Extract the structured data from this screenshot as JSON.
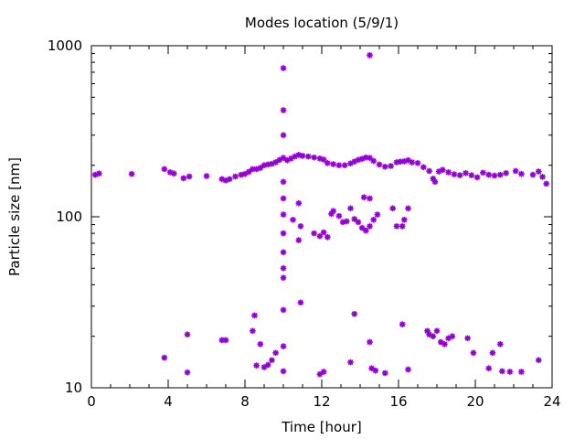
{
  "chart_data": {
    "type": "scatter",
    "title": "Modes location (5/9/1)",
    "xlabel": "Time [hour]",
    "ylabel": "Particle size [nm]",
    "xlim": [
      0,
      24
    ],
    "ylim": [
      10,
      1000
    ],
    "yscale": "log",
    "x_ticks": [
      0,
      4,
      8,
      12,
      16,
      20,
      24
    ],
    "x_tick_labels": [
      "0",
      "4",
      "8",
      "12",
      "16",
      "20",
      "24"
    ],
    "y_ticks": [
      10,
      100,
      1000
    ],
    "y_tick_labels": [
      "10",
      "100",
      "1000"
    ],
    "grid": false,
    "legend": "none",
    "marker_color": "#9400D3",
    "marker": "star",
    "series": [
      {
        "points": [
          [
            0.2,
            176
          ],
          [
            0.4,
            179
          ],
          [
            2.1,
            178
          ],
          [
            3.8,
            190
          ],
          [
            4.1,
            182
          ],
          [
            4.3,
            179
          ],
          [
            4.8,
            168
          ],
          [
            5.1,
            172
          ],
          [
            6.0,
            173
          ],
          [
            6.8,
            166
          ],
          [
            7.0,
            163
          ],
          [
            7.2,
            166
          ],
          [
            7.5,
            172
          ],
          [
            7.8,
            176
          ],
          [
            8.0,
            178
          ],
          [
            8.2,
            183
          ],
          [
            8.4,
            190
          ],
          [
            8.6,
            190
          ],
          [
            8.8,
            193
          ],
          [
            9.0,
            200
          ],
          [
            9.2,
            202
          ],
          [
            9.4,
            204
          ],
          [
            9.6,
            208
          ],
          [
            9.8,
            215
          ],
          [
            10.0,
            221
          ],
          [
            10.2,
            214
          ],
          [
            10.4,
            219
          ],
          [
            10.6,
            225
          ],
          [
            10.8,
            230
          ],
          [
            11.0,
            227
          ],
          [
            11.3,
            225
          ],
          [
            11.6,
            222
          ],
          [
            11.9,
            219
          ],
          [
            12.1,
            216
          ],
          [
            12.3,
            206
          ],
          [
            12.6,
            203
          ],
          [
            12.9,
            200
          ],
          [
            13.2,
            200
          ],
          [
            13.5,
            205
          ],
          [
            13.7,
            210
          ],
          [
            13.9,
            215
          ],
          [
            14.1,
            218
          ],
          [
            14.3,
            222
          ],
          [
            14.5,
            221
          ],
          [
            14.7,
            212
          ],
          [
            15.0,
            202
          ],
          [
            15.3,
            196
          ],
          [
            15.6,
            198
          ],
          [
            15.9,
            208
          ],
          [
            16.1,
            210
          ],
          [
            16.3,
            211
          ],
          [
            16.5,
            214
          ],
          [
            16.7,
            208
          ],
          [
            17.0,
            206
          ],
          [
            17.3,
            195
          ],
          [
            17.6,
            185
          ],
          [
            17.8,
            167
          ],
          [
            17.9,
            160
          ],
          [
            18.1,
            184
          ],
          [
            18.3,
            188
          ],
          [
            18.6,
            182
          ],
          [
            18.9,
            177
          ],
          [
            19.2,
            175
          ],
          [
            19.5,
            180
          ],
          [
            19.8,
            175
          ],
          [
            20.1,
            170
          ],
          [
            20.4,
            181
          ],
          [
            20.7,
            176
          ],
          [
            21.0,
            174
          ],
          [
            21.3,
            176
          ],
          [
            21.6,
            180
          ],
          [
            22.1,
            185
          ],
          [
            22.4,
            178
          ],
          [
            23.0,
            176
          ],
          [
            23.3,
            184
          ],
          [
            23.5,
            171
          ],
          [
            23.7,
            156
          ],
          [
            10.0,
            740
          ],
          [
            10.0,
            420
          ],
          [
            10.0,
            300
          ],
          [
            14.5,
            880
          ],
          [
            10.0,
            160
          ],
          [
            10.0,
            128
          ],
          [
            10.0,
            103
          ],
          [
            10.0,
            80
          ],
          [
            10.0,
            62
          ],
          [
            10.0,
            50
          ],
          [
            10.0,
            44
          ],
          [
            10.5,
            96
          ],
          [
            10.8,
            120
          ],
          [
            10.8,
            73
          ],
          [
            10.9,
            88
          ],
          [
            11.6,
            80
          ],
          [
            11.9,
            77
          ],
          [
            12.1,
            81
          ],
          [
            12.3,
            76
          ],
          [
            12.5,
            104
          ],
          [
            12.6,
            108
          ],
          [
            12.9,
            101
          ],
          [
            13.1,
            93
          ],
          [
            13.3,
            94
          ],
          [
            13.5,
            112
          ],
          [
            13.7,
            97
          ],
          [
            13.9,
            93
          ],
          [
            14.1,
            86
          ],
          [
            14.3,
            83
          ],
          [
            14.5,
            88
          ],
          [
            14.7,
            96
          ],
          [
            14.9,
            103
          ],
          [
            14.2,
            130
          ],
          [
            14.5,
            128
          ],
          [
            15.7,
            112
          ],
          [
            15.9,
            88
          ],
          [
            16.3,
            96
          ],
          [
            16.5,
            112
          ],
          [
            16.2,
            88
          ],
          [
            3.8,
            15
          ],
          [
            5.0,
            20.5
          ],
          [
            5.0,
            12.3
          ],
          [
            6.8,
            19
          ],
          [
            7.0,
            19
          ],
          [
            8.4,
            21.5
          ],
          [
            8.5,
            26.5
          ],
          [
            8.6,
            13.5
          ],
          [
            8.8,
            18
          ],
          [
            9.0,
            13.2
          ],
          [
            9.2,
            13.6
          ],
          [
            9.4,
            14.5
          ],
          [
            9.6,
            16
          ],
          [
            10.0,
            28.5
          ],
          [
            10.0,
            17.5
          ],
          [
            10.0,
            12.5
          ],
          [
            10.9,
            31.5
          ],
          [
            11.9,
            12
          ],
          [
            12.1,
            12.4
          ],
          [
            13.5,
            14.1
          ],
          [
            13.7,
            27
          ],
          [
            14.5,
            18.5
          ],
          [
            14.6,
            13
          ],
          [
            14.8,
            12.6
          ],
          [
            15.3,
            12.2
          ],
          [
            16.2,
            23.5
          ],
          [
            16.5,
            12.8
          ],
          [
            17.5,
            21.5
          ],
          [
            17.6,
            20.5
          ],
          [
            17.8,
            20
          ],
          [
            18.0,
            21.5
          ],
          [
            18.2,
            18.5
          ],
          [
            18.4,
            18
          ],
          [
            18.6,
            19.5
          ],
          [
            18.8,
            20
          ],
          [
            19.6,
            19.5
          ],
          [
            19.9,
            16
          ],
          [
            20.7,
            13
          ],
          [
            20.9,
            16
          ],
          [
            21.3,
            18
          ],
          [
            21.4,
            12.5
          ],
          [
            21.8,
            12.4
          ],
          [
            22.4,
            12.4
          ],
          [
            23.3,
            14.5
          ]
        ]
      }
    ]
  }
}
